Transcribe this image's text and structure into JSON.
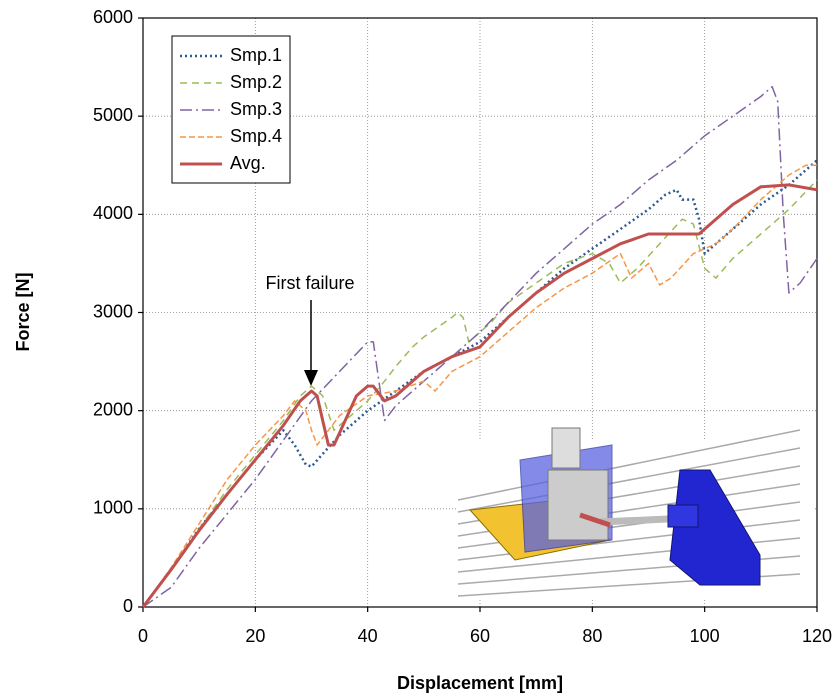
{
  "chart_data": {
    "type": "line",
    "xlabel": "Displacement [mm]",
    "ylabel": "Force [N]",
    "annotation": "First failure",
    "xlim": [
      0,
      120
    ],
    "xticks": [
      0,
      20,
      40,
      60,
      80,
      100,
      120
    ],
    "ylim": [
      0,
      6000
    ],
    "yticks": [
      0,
      1000,
      2000,
      3000,
      4000,
      5000,
      6000
    ],
    "grid": true,
    "series": [
      {
        "name": "Smp.1",
        "color": "#2e5a8e",
        "x": [
          0,
          5,
          10,
          15,
          20,
          25,
          27,
          29,
          30,
          32,
          35,
          40,
          45,
          50,
          55,
          60,
          65,
          70,
          75,
          80,
          85,
          90,
          93,
          95,
          96,
          98,
          99,
          100,
          105,
          110,
          115,
          120
        ],
        "values": [
          0,
          380,
          800,
          1150,
          1500,
          1800,
          1650,
          1450,
          1430,
          1560,
          1750,
          2000,
          2200,
          2400,
          2550,
          2700,
          2950,
          3200,
          3450,
          3650,
          3850,
          4050,
          4200,
          4250,
          4150,
          4150,
          3950,
          3600,
          3850,
          4100,
          4300,
          4550
        ]
      },
      {
        "name": "Smp.2",
        "color": "#9bbb59",
        "x": [
          0,
          5,
          10,
          15,
          20,
          25,
          28,
          30,
          32,
          34,
          36,
          40,
          43,
          45,
          48,
          50,
          55,
          56,
          57,
          58,
          62,
          65,
          70,
          75,
          80,
          83,
          85,
          88,
          92,
          96,
          98,
          100,
          102,
          105,
          110,
          115,
          120
        ],
        "values": [
          0,
          380,
          800,
          1200,
          1550,
          1900,
          2150,
          2250,
          2150,
          1800,
          1900,
          2100,
          2300,
          2450,
          2650,
          2750,
          2950,
          3000,
          2950,
          2700,
          2900,
          3100,
          3300,
          3500,
          3600,
          3500,
          3300,
          3450,
          3700,
          3950,
          3900,
          3450,
          3350,
          3550,
          3800,
          4050,
          4350
        ]
      },
      {
        "name": "Smp.3",
        "color": "#8064a2",
        "x": [
          0,
          5,
          10,
          15,
          20,
          25,
          30,
          35,
          40,
          41,
          43,
          45,
          50,
          55,
          60,
          65,
          70,
          75,
          80,
          85,
          90,
          95,
          100,
          105,
          110,
          112,
          113,
          114,
          115,
          117,
          120
        ],
        "values": [
          0,
          200,
          600,
          950,
          1300,
          1700,
          2100,
          2400,
          2700,
          2700,
          1900,
          2050,
          2300,
          2550,
          2800,
          3100,
          3400,
          3650,
          3900,
          4100,
          4350,
          4550,
          4800,
          5000,
          5200,
          5300,
          5150,
          4000,
          3200,
          3300,
          3550
        ]
      },
      {
        "name": "Smp.4",
        "color": "#f79646",
        "x": [
          0,
          5,
          10,
          15,
          20,
          25,
          27,
          29,
          30,
          31,
          33,
          35,
          40,
          45,
          50,
          52,
          55,
          60,
          65,
          70,
          75,
          80,
          85,
          87,
          90,
          92,
          94,
          98,
          102,
          105,
          110,
          115,
          118,
          120
        ],
        "values": [
          0,
          400,
          850,
          1300,
          1650,
          1950,
          2100,
          2000,
          1800,
          1650,
          1800,
          1950,
          2150,
          2200,
          2300,
          2200,
          2400,
          2550,
          2800,
          3050,
          3250,
          3400,
          3600,
          3350,
          3500,
          3280,
          3350,
          3600,
          3700,
          3850,
          4150,
          4400,
          4500,
          4500
        ]
      },
      {
        "name": "Avg.",
        "color": "#c0504d",
        "x": [
          0,
          5,
          10,
          15,
          20,
          25,
          28,
          30,
          31,
          32,
          33,
          34,
          36,
          38,
          40,
          41,
          43,
          45,
          50,
          55,
          60,
          65,
          70,
          75,
          80,
          85,
          90,
          95,
          99,
          102,
          105,
          110,
          115,
          120
        ],
        "values": [
          0,
          380,
          780,
          1150,
          1500,
          1850,
          2100,
          2200,
          2150,
          1900,
          1650,
          1650,
          1900,
          2150,
          2250,
          2250,
          2100,
          2150,
          2400,
          2550,
          2650,
          2950,
          3200,
          3400,
          3550,
          3700,
          3800,
          3800,
          3800,
          3950,
          4100,
          4280,
          4300,
          4250
        ]
      }
    ]
  }
}
